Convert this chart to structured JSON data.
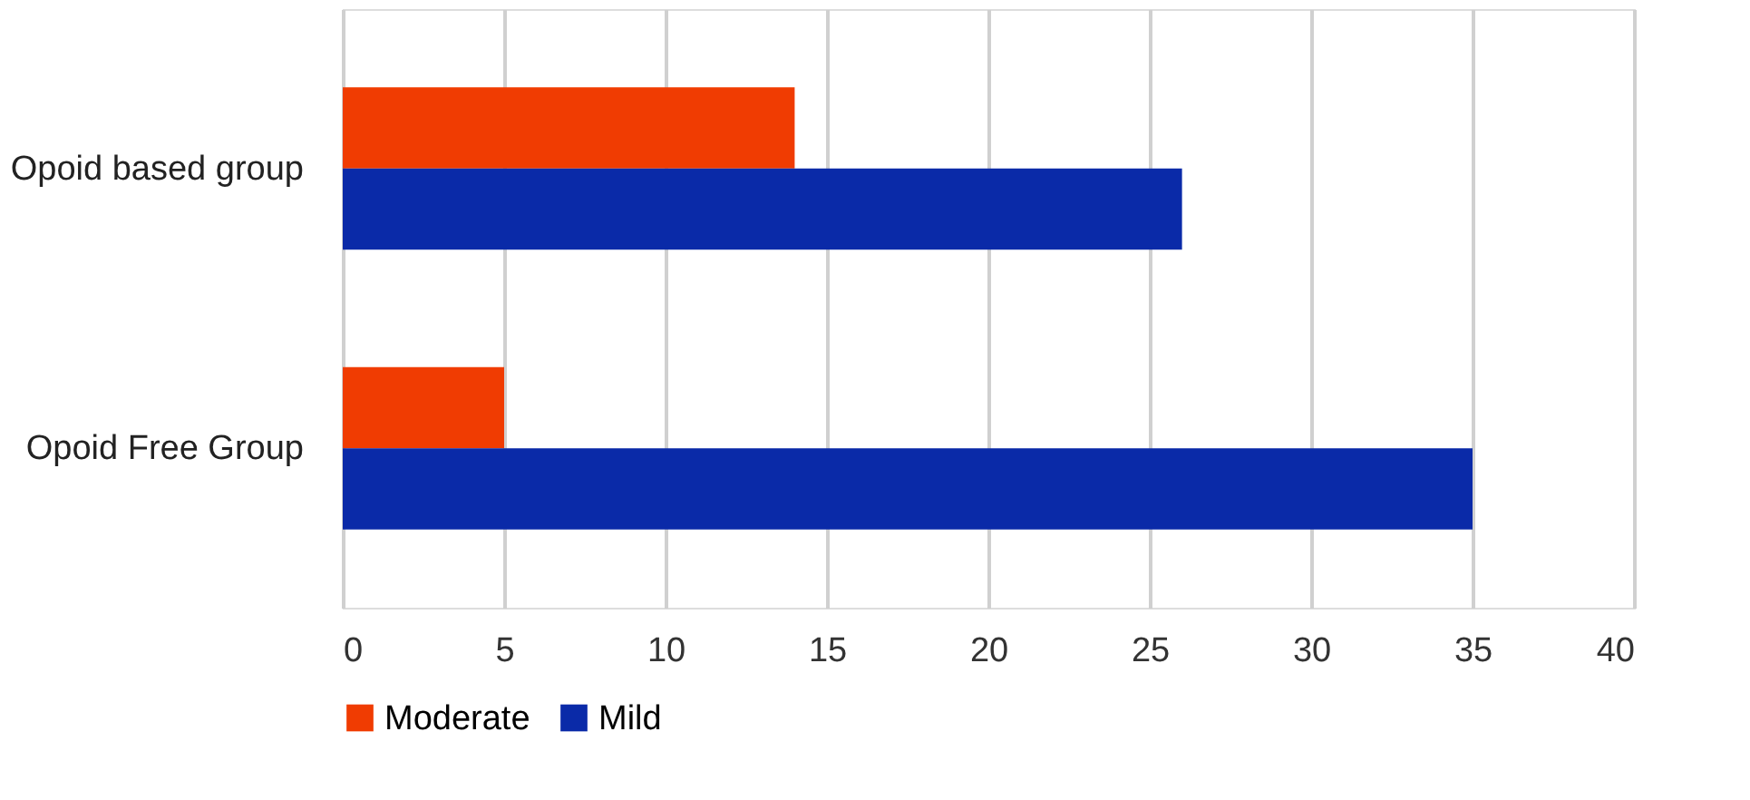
{
  "chart_data": {
    "type": "bar",
    "orientation": "horizontal",
    "categories": [
      "Opoid based group",
      "Opoid Free Group"
    ],
    "series": [
      {
        "name": "Moderate",
        "color": "#f03c02",
        "values": [
          14,
          5
        ]
      },
      {
        "name": "Mild",
        "color": "#0a2aa8",
        "values": [
          26,
          35
        ]
      }
    ],
    "xlim": [
      0,
      40
    ],
    "xticks": [
      0,
      5,
      10,
      15,
      20,
      25,
      30,
      35,
      40
    ],
    "grid": "x",
    "legend": "bottom"
  }
}
